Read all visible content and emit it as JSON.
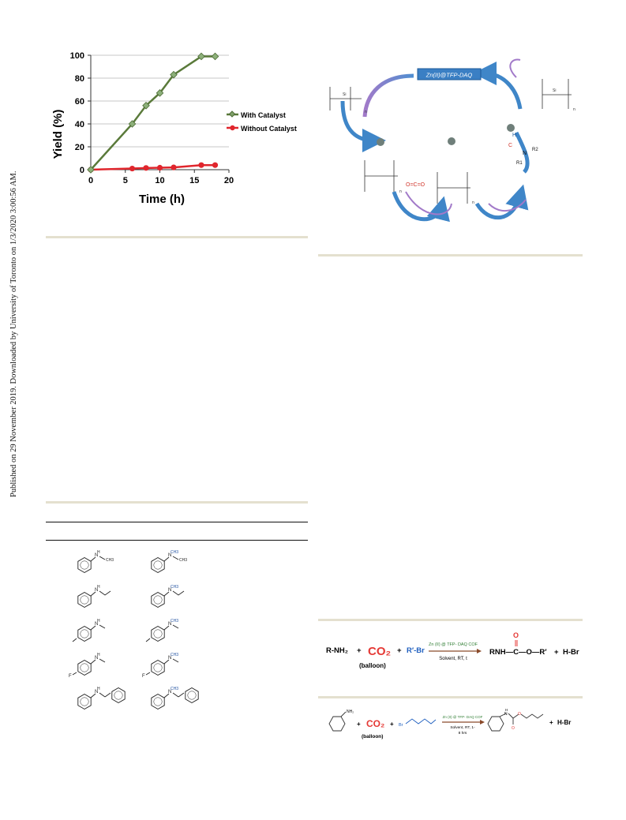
{
  "sidebar": {
    "published_note": "Published on 29 November 2019. Downloaded by University of Toronto on 1/3/2020 3:00:56 AM."
  },
  "chart_data": {
    "type": "line",
    "xlabel": "Time (h)",
    "ylabel": "Yield (%)",
    "xlim": [
      0,
      20
    ],
    "ylim": [
      0,
      100
    ],
    "x_ticks": [
      "0",
      "5",
      "10",
      "15",
      "20"
    ],
    "y_ticks": [
      "0",
      "20",
      "40",
      "60",
      "80",
      "100"
    ],
    "grid": "horizontal",
    "legend_position": "right",
    "colors": {
      "with": "#5a7a3a",
      "without": "#e0262d"
    },
    "series": [
      {
        "name": "With Catalyst",
        "x": [
          0,
          6,
          8,
          10,
          12,
          16,
          18
        ],
        "y": [
          0,
          40,
          56,
          67,
          83,
          99,
          99
        ]
      },
      {
        "name": "Without Catalyst",
        "x": [
          0,
          6,
          8,
          10,
          12,
          16,
          18
        ],
        "y": [
          0,
          1,
          1.5,
          1.7,
          2,
          4,
          4
        ]
      }
    ]
  },
  "mechanism": {
    "catalyst_label": "Zn(II)@TFP-DAQ",
    "zn_label": "Zn",
    "carbonyl_h": "H",
    "carbonyl_c": "C",
    "amine_n": "N",
    "r1": "R1",
    "r2": "R2",
    "co2": "O=C=O",
    "subscript_n": "n"
  },
  "table_molecules": [
    {
      "left": "N-methylaniline",
      "right": "N,N-dimethylaniline"
    },
    {
      "left": "N-ethylaniline",
      "right": "N-ethyl-N-methylaniline"
    },
    {
      "left": "N,4-dimethylaniline",
      "right": "N,N,4-trimethylaniline"
    },
    {
      "left": "4-fluoro-N-methylaniline",
      "right": "4-fluoro-N,N-dimethylaniline"
    },
    {
      "left": "N-benzylaniline",
      "right": "N-benzyl-N-methylaniline"
    }
  ],
  "scheme1": {
    "reactant": "R-NH₂",
    "plus1": "+",
    "co2": "CO₂",
    "plus2": "+",
    "halide": "R′-Br",
    "catalyst": "Zn (II) @ TFP- DAQ COF",
    "conditions": "Solvent, RT, t",
    "balloon": "(balloon)",
    "product": "RNH—C—O—R′",
    "product_o": "O",
    "plus3": "+",
    "byproduct": "H-Br"
  },
  "scheme2": {
    "nh2": "NH₂",
    "plus1": "+",
    "co2": "CO₂",
    "plus2": "+",
    "br": "Br",
    "catalyst": "Zn (II) @ TFP- DAQ COF",
    "conditions": "Solvent, RT, 1-",
    "conditions2": "8 hrs",
    "balloon": "(balloon)",
    "product_h": "H",
    "product_n": "N",
    "product_o": "O",
    "plus3": "+",
    "byproduct": "H-Br"
  }
}
